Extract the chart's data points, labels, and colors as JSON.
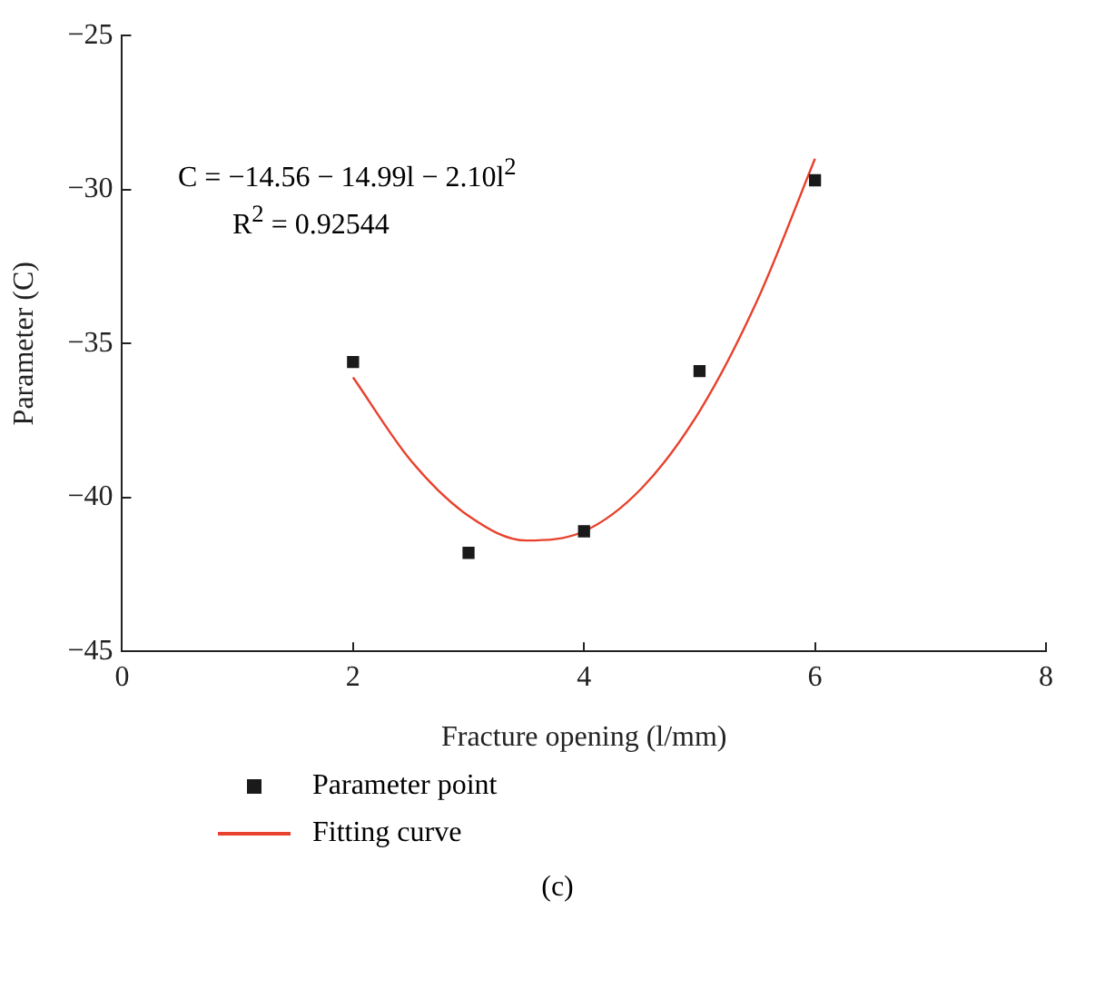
{
  "chart_data": {
    "type": "scatter",
    "xlabel": "Fracture opening (l/mm)",
    "ylabel": "Parameter (C)",
    "xlim": [
      0,
      8
    ],
    "xticks": [
      0,
      2,
      4,
      6,
      8
    ],
    "ylim": [
      -45,
      -25
    ],
    "yticks": [
      -45,
      -40,
      -35,
      -30,
      -25
    ],
    "grid": false,
    "legend": "bottom",
    "series": [
      {
        "name": "Parameter point",
        "marker": "square",
        "color": "#1a1a1a",
        "x": [
          2,
          3,
          4,
          5,
          6
        ],
        "values": [
          -35.6,
          -41.8,
          -41.1,
          -35.9,
          -29.7
        ]
      },
      {
        "name": "Fitting curve",
        "type": "line",
        "marker": "none",
        "color": "#e8412c",
        "x": [
          2,
          2.5,
          3,
          3.5,
          4,
          4.5,
          5,
          5.5,
          6
        ],
        "values": [
          -36.1,
          -38.8,
          -40.6,
          -41.4,
          -41.1,
          -39.7,
          -37.2,
          -33.6,
          -29.0
        ]
      }
    ],
    "annotations": [
      "C = −14.56 − 14.99l − 2.10l$^{2}$",
      "R$^{2}$ = 0.92544",
      "(c)"
    ]
  }
}
